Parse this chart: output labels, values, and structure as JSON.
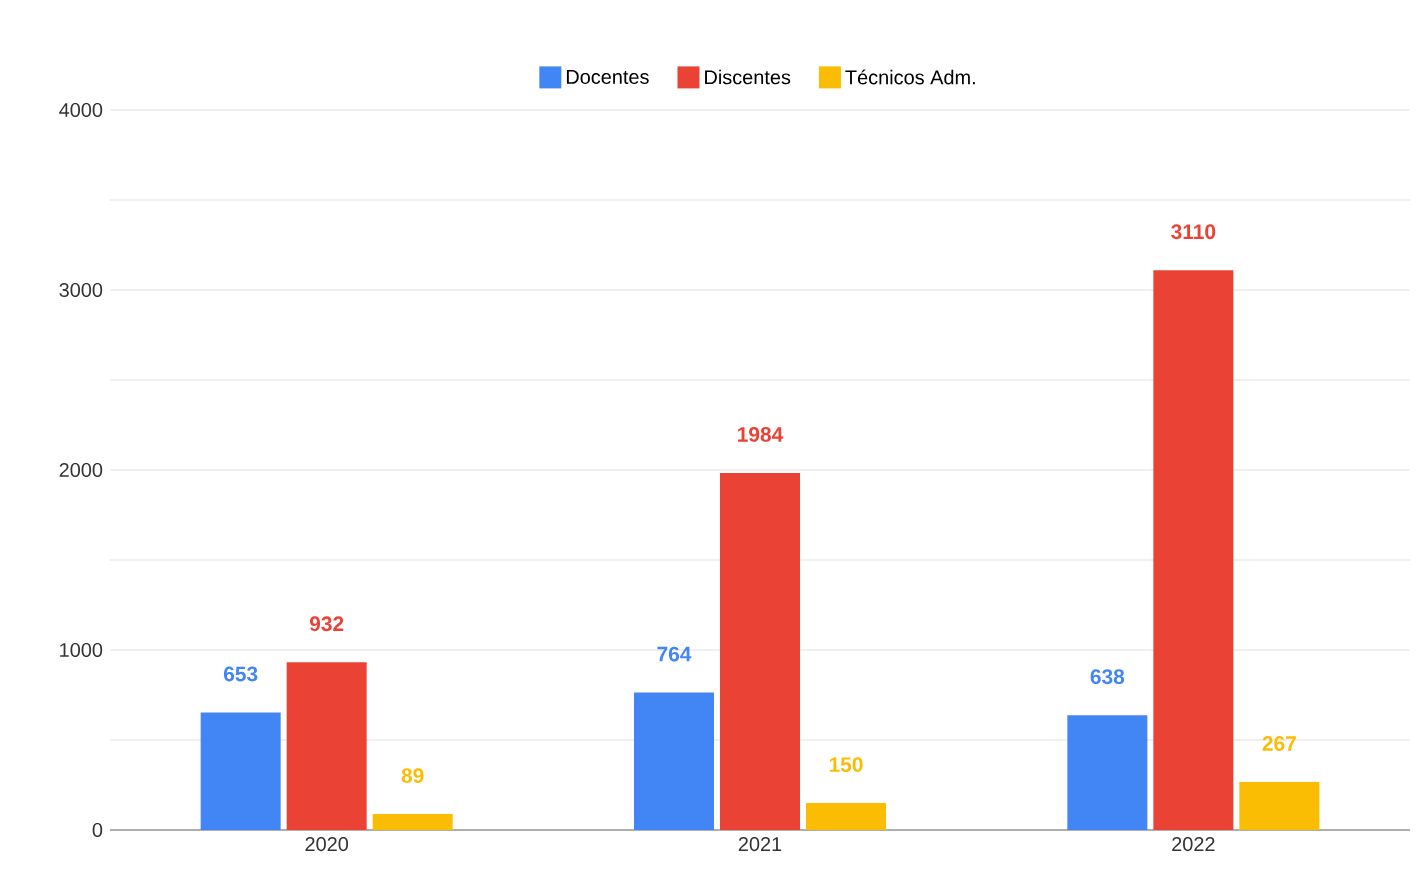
{
  "chart_data": {
    "type": "bar",
    "categories": [
      "2020",
      "2021",
      "2022"
    ],
    "series": [
      {
        "name": "Docentes",
        "color": "#4285f4",
        "values": [
          653,
          764,
          638
        ]
      },
      {
        "name": "Discentes",
        "color": "#ea4335",
        "values": [
          932,
          1984,
          3110
        ]
      },
      {
        "name": "Técnicos Adm.",
        "color": "#fbbc04",
        "values": [
          89,
          150,
          267
        ]
      }
    ],
    "ylim": [
      0,
      4000
    ],
    "yticks": [
      0,
      {
        "value": 500,
        "label": null
      },
      1000,
      {
        "value": 1500,
        "label": null
      },
      2000,
      {
        "value": 2500,
        "label": null
      },
      3000,
      {
        "value": 3500,
        "label": null
      },
      4000
    ],
    "grid": "y",
    "legend": "top",
    "data_labels": true
  }
}
